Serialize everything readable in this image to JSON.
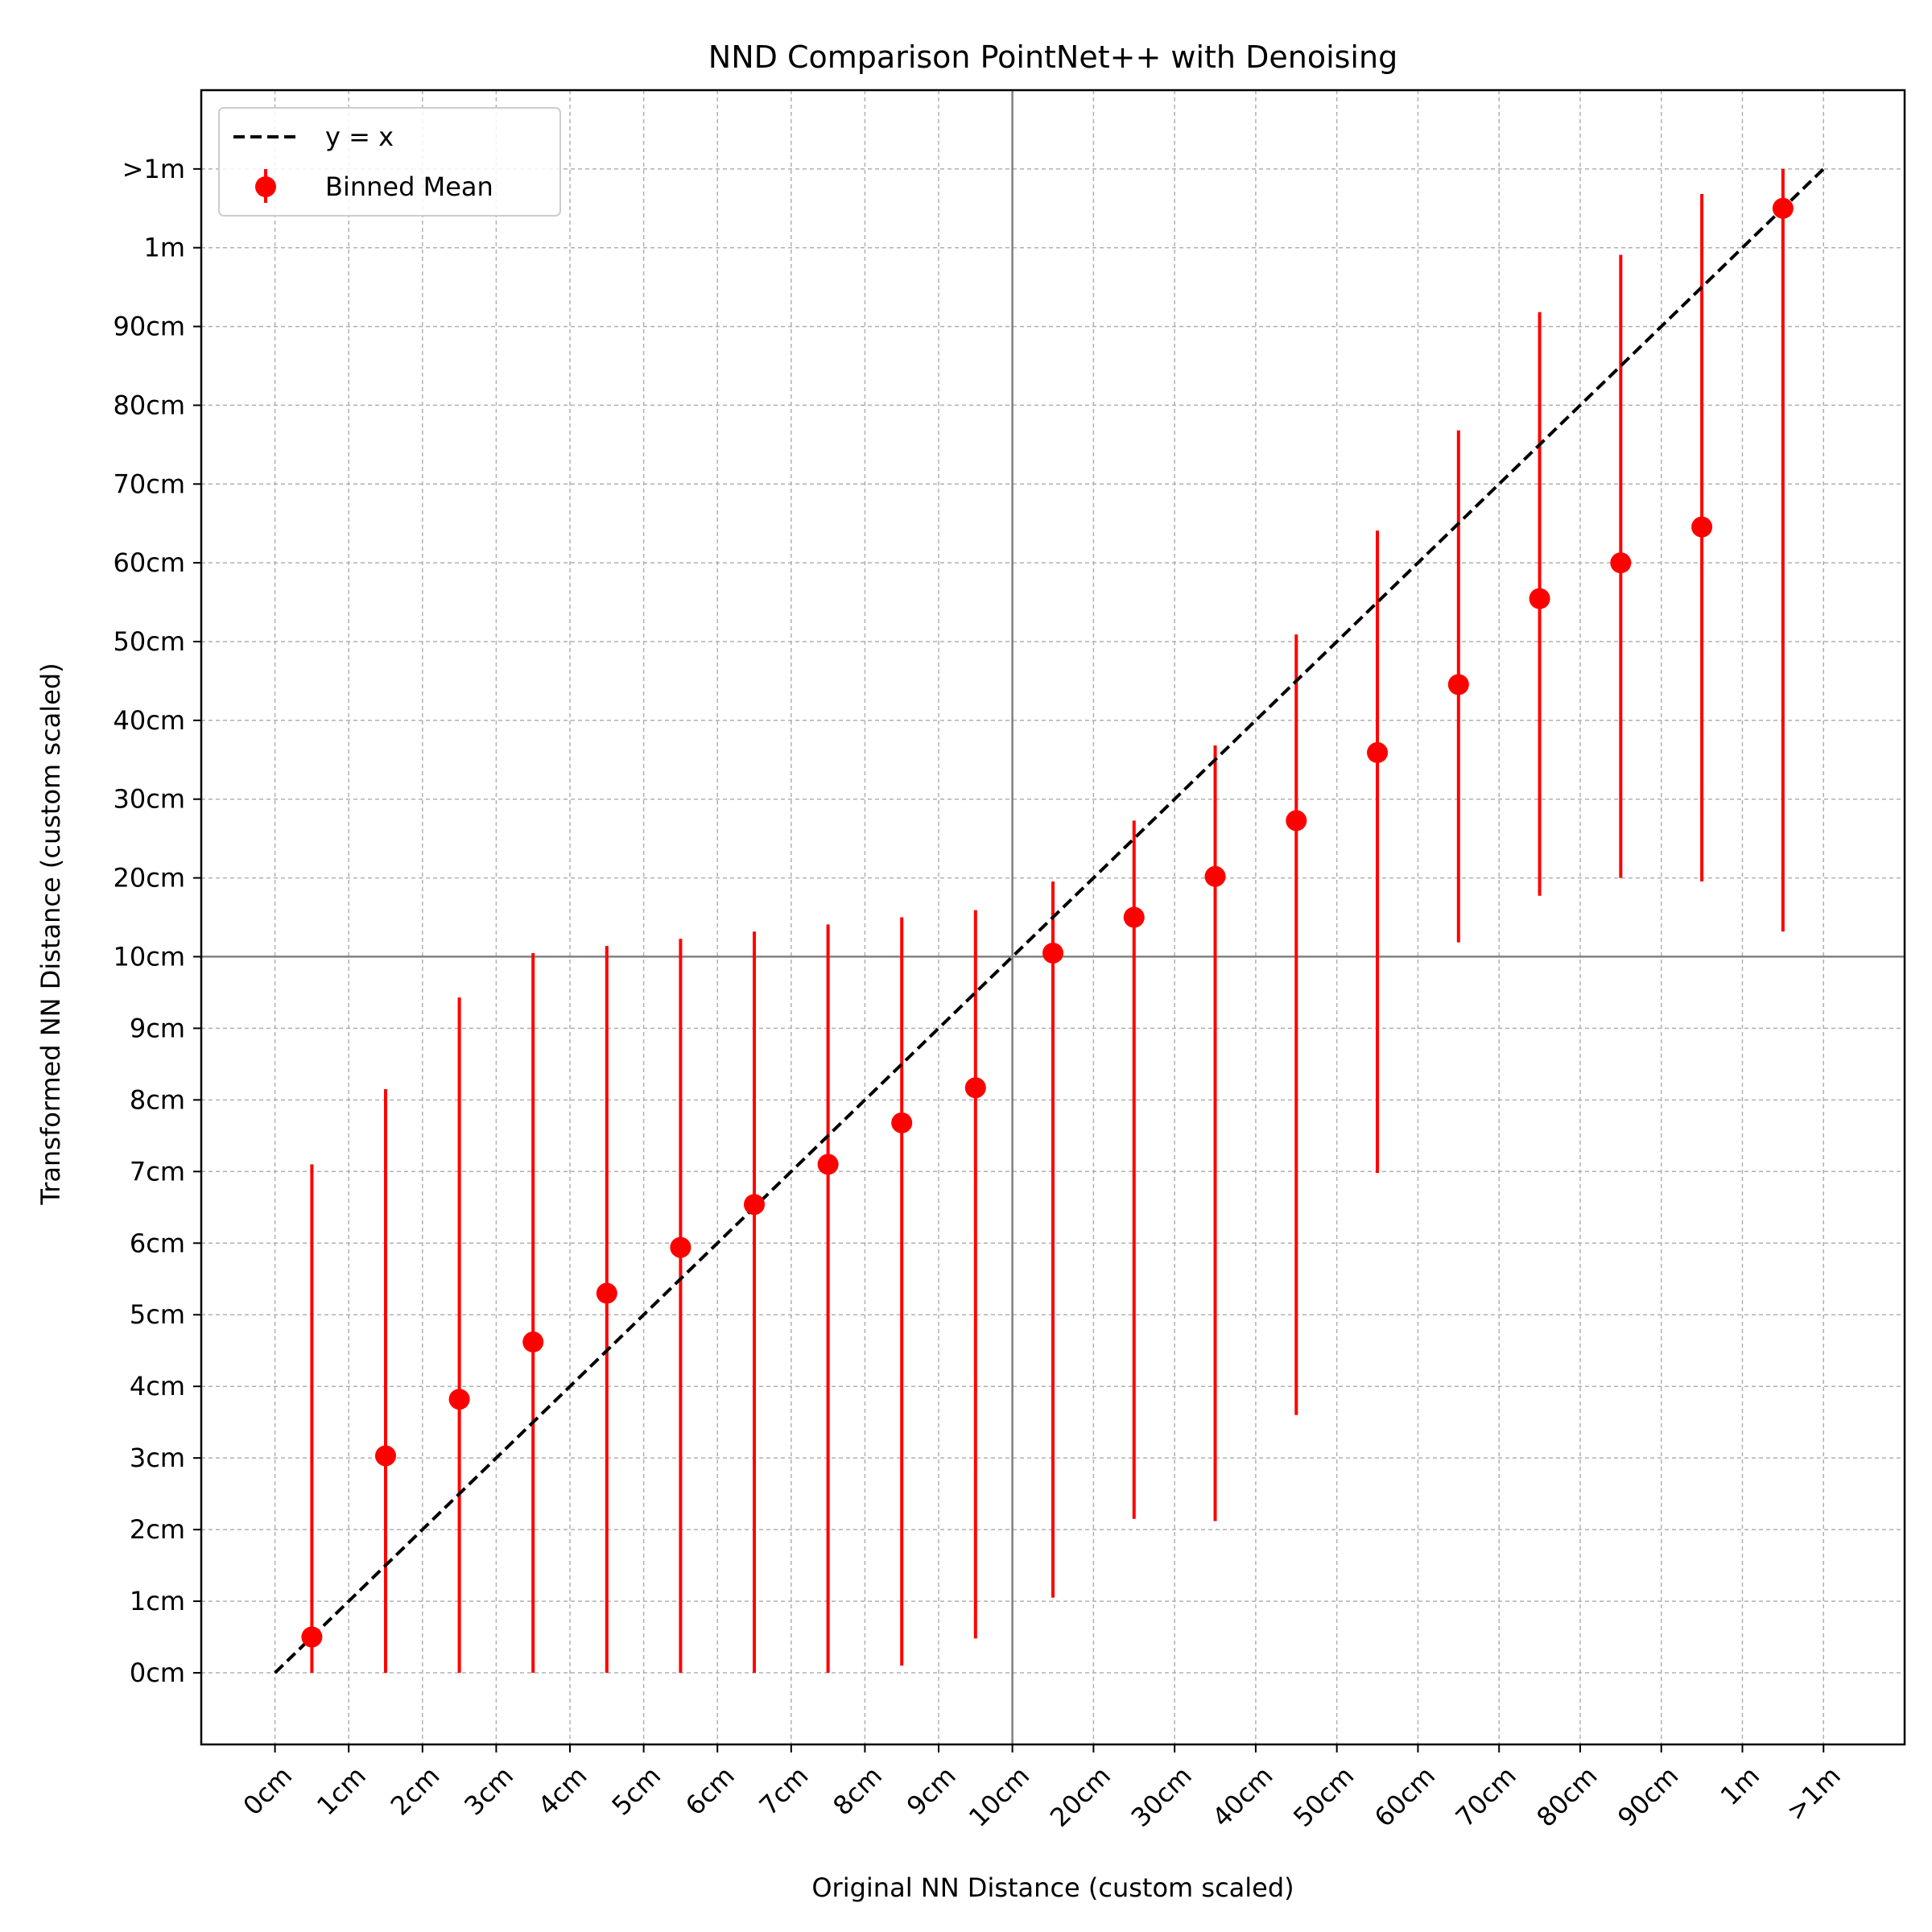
{
  "chart_data": {
    "type": "scatter",
    "title": "NND Comparison PointNet++ with Denoising",
    "xlabel": "Original NN Distance (custom scaled)",
    "ylabel": "Transformed NN Distance (custom scaled)",
    "scale_note": "custom piecewise scale: 0-10cm in 1cm steps, 10cm-1m in 10cm steps, then >1m",
    "xlim": [
      -1,
      22.1
    ],
    "ylim": [
      -1,
      22.1
    ],
    "grid": true,
    "legend_position": "top-left",
    "x_ticks": [
      {
        "pos": 0,
        "label": "0cm"
      },
      {
        "pos": 1,
        "label": "1cm"
      },
      {
        "pos": 2,
        "label": "2cm"
      },
      {
        "pos": 3,
        "label": "3cm"
      },
      {
        "pos": 4,
        "label": "4cm"
      },
      {
        "pos": 5,
        "label": "5cm"
      },
      {
        "pos": 6,
        "label": "6cm"
      },
      {
        "pos": 7,
        "label": "7cm"
      },
      {
        "pos": 8,
        "label": "8cm"
      },
      {
        "pos": 9,
        "label": "9cm"
      },
      {
        "pos": 10,
        "label": "10cm"
      },
      {
        "pos": 11.1,
        "label": "20cm"
      },
      {
        "pos": 12.2,
        "label": "30cm"
      },
      {
        "pos": 13.3,
        "label": "40cm"
      },
      {
        "pos": 14.4,
        "label": "50cm"
      },
      {
        "pos": 15.5,
        "label": "60cm"
      },
      {
        "pos": 16.6,
        "label": "70cm"
      },
      {
        "pos": 17.7,
        "label": "80cm"
      },
      {
        "pos": 18.8,
        "label": "90cm"
      },
      {
        "pos": 19.9,
        "label": "1m"
      },
      {
        "pos": 21,
        "label": ">1m"
      }
    ],
    "y_ticks": [
      {
        "pos": 0,
        "label": "0cm"
      },
      {
        "pos": 1,
        "label": "1cm"
      },
      {
        "pos": 2,
        "label": "2cm"
      },
      {
        "pos": 3,
        "label": "3cm"
      },
      {
        "pos": 4,
        "label": "4cm"
      },
      {
        "pos": 5,
        "label": "5cm"
      },
      {
        "pos": 6,
        "label": "6cm"
      },
      {
        "pos": 7,
        "label": "7cm"
      },
      {
        "pos": 8,
        "label": "8cm"
      },
      {
        "pos": 9,
        "label": "9cm"
      },
      {
        "pos": 10,
        "label": "10cm"
      },
      {
        "pos": 11.1,
        "label": "20cm"
      },
      {
        "pos": 12.2,
        "label": "30cm"
      },
      {
        "pos": 13.3,
        "label": "40cm"
      },
      {
        "pos": 14.4,
        "label": "50cm"
      },
      {
        "pos": 15.5,
        "label": "60cm"
      },
      {
        "pos": 16.6,
        "label": "70cm"
      },
      {
        "pos": 17.7,
        "label": "80cm"
      },
      {
        "pos": 18.8,
        "label": "90cm"
      },
      {
        "pos": 19.9,
        "label": "1m"
      },
      {
        "pos": 21,
        "label": ">1m"
      }
    ],
    "reference_lines": {
      "x": 10,
      "y": 10,
      "color": "#808080"
    },
    "series": [
      {
        "name": "y = x",
        "kind": "line",
        "style": "dashed",
        "color": "#000000",
        "x": [
          0,
          21
        ],
        "y": [
          0,
          21
        ]
      },
      {
        "name": "Binned Mean",
        "kind": "errorbar",
        "color": "#ff0000",
        "points": [
          {
            "x": 0.5,
            "y": 0.5,
            "low": 0.0,
            "high": 7.1
          },
          {
            "x": 1.5,
            "y": 3.03,
            "low": 0.0,
            "high": 8.15
          },
          {
            "x": 2.5,
            "y": 3.82,
            "low": 0.0,
            "high": 9.43
          },
          {
            "x": 3.5,
            "y": 4.62,
            "low": 0.0,
            "high": 10.05
          },
          {
            "x": 4.5,
            "y": 5.3,
            "low": 0.0,
            "high": 10.15
          },
          {
            "x": 5.5,
            "y": 5.94,
            "low": 0.0,
            "high": 10.25
          },
          {
            "x": 6.5,
            "y": 6.54,
            "low": 0.0,
            "high": 10.35
          },
          {
            "x": 7.5,
            "y": 7.1,
            "low": 0.0,
            "high": 10.45
          },
          {
            "x": 8.5,
            "y": 7.68,
            "low": 0.1,
            "high": 10.55
          },
          {
            "x": 9.5,
            "y": 8.17,
            "low": 0.48,
            "high": 10.65
          },
          {
            "x": 10.55,
            "y": 10.05,
            "low": 1.05,
            "high": 11.05
          },
          {
            "x": 11.65,
            "y": 10.55,
            "low": 2.15,
            "high": 11.9
          },
          {
            "x": 12.75,
            "y": 11.12,
            "low": 2.12,
            "high": 12.95
          },
          {
            "x": 13.85,
            "y": 11.9,
            "low": 3.6,
            "high": 14.5
          },
          {
            "x": 14.95,
            "y": 12.85,
            "low": 6.98,
            "high": 15.95
          },
          {
            "x": 16.05,
            "y": 13.8,
            "low": 10.2,
            "high": 17.35
          },
          {
            "x": 17.15,
            "y": 15.0,
            "low": 10.85,
            "high": 19.0
          },
          {
            "x": 18.25,
            "y": 15.5,
            "low": 11.1,
            "high": 19.8
          },
          {
            "x": 19.35,
            "y": 16.0,
            "low": 11.05,
            "high": 20.65
          },
          {
            "x": 20.45,
            "y": 20.45,
            "low": 10.35,
            "high": 21.0
          }
        ]
      }
    ]
  }
}
